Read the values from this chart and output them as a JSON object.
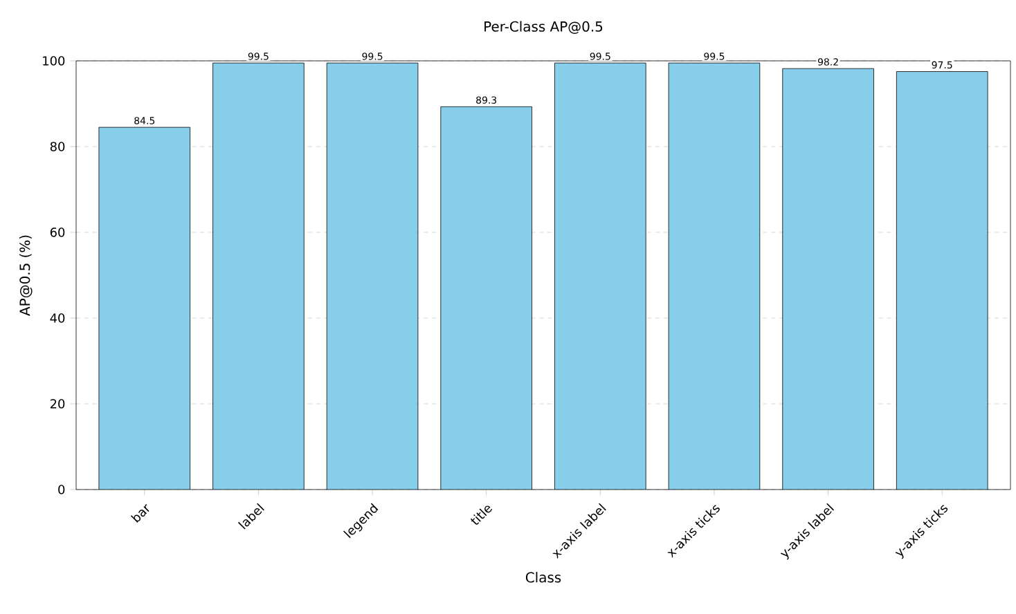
{
  "chart_data": {
    "type": "bar",
    "title": "Per-Class AP@0.5",
    "xlabel": "Class",
    "ylabel": "AP@0.5 (%)",
    "categories": [
      "bar",
      "label",
      "legend",
      "title",
      "x-axis label",
      "x-axis ticks",
      "y-axis label",
      "y-axis ticks"
    ],
    "values": [
      84.5,
      99.5,
      99.5,
      89.3,
      99.5,
      99.5,
      98.2,
      97.5
    ],
    "color": "#87ceeb",
    "ylim": [
      0,
      100
    ],
    "yticks": [
      0,
      20,
      40,
      60,
      80,
      100
    ],
    "grid": "y",
    "data_labels": true
  }
}
